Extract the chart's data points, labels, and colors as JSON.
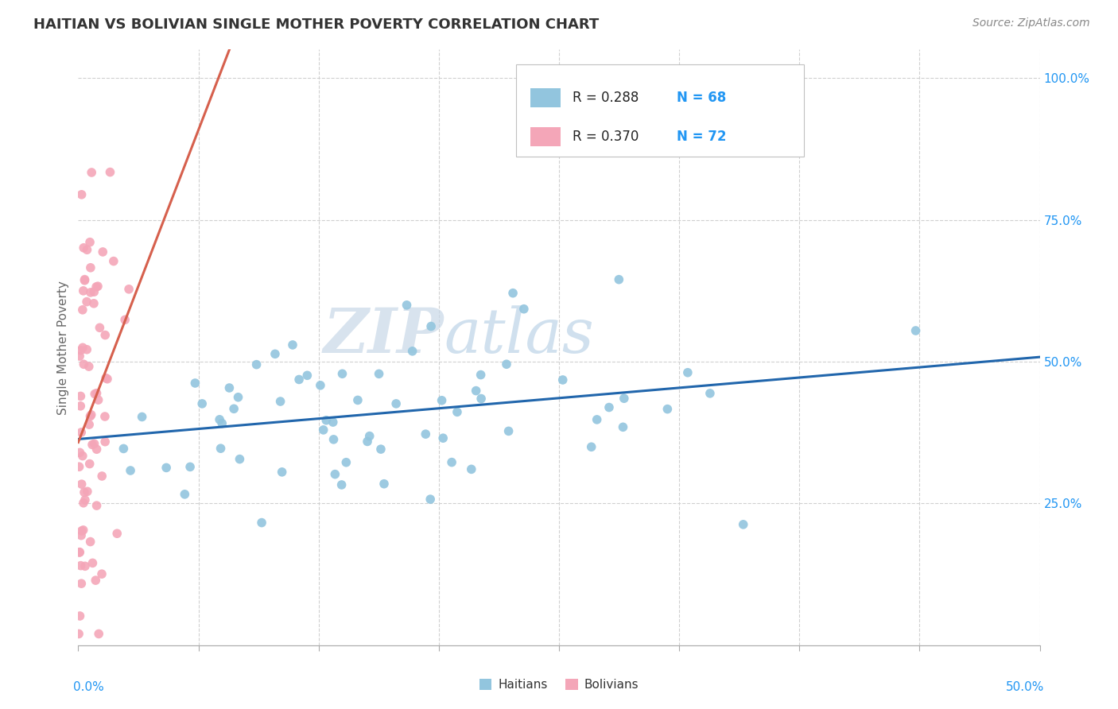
{
  "title": "HAITIAN VS BOLIVIAN SINGLE MOTHER POVERTY CORRELATION CHART",
  "source_text": "Source: ZipAtlas.com",
  "ylabel": "Single Mother Poverty",
  "color_blue": "#92c5de",
  "color_pink": "#f4a6b8",
  "color_blue_line": "#2166ac",
  "color_pink_line": "#d6604d",
  "color_text_blue": "#2196F3",
  "color_text_dark": "#333333",
  "watermark_color": "#d8e8f0",
  "grid_color": "#d0d0d0",
  "background_color": "#ffffff",
  "legend_r_blue": "R = 0.288",
  "legend_n_blue": "N = 68",
  "legend_r_pink": "R = 0.370",
  "legend_n_pink": "N = 72",
  "legend_label_blue": "Haitians",
  "legend_label_pink": "Bolivians",
  "xrange": [
    0.0,
    0.5
  ],
  "yrange": [
    0.0,
    1.05
  ],
  "blue_seed": 42,
  "pink_seed": 99
}
